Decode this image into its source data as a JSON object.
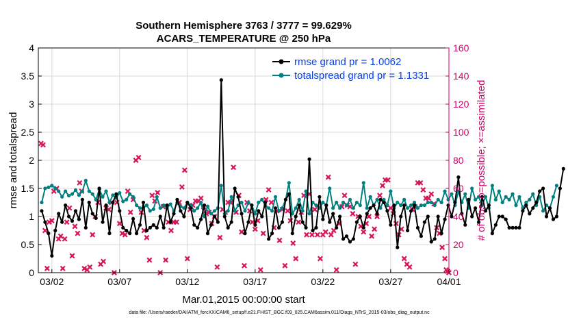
{
  "chart_data": {
    "type": "line",
    "title": "Southern Hemisphere 3763 / 3777 = 99.629%",
    "subtitle": "ACARS_TEMPERATURE @ 250 hPa",
    "xlabel": "Mar.01,2015 00:00:00 start",
    "ylabel": "rmse and totalspread",
    "ylabel_right": "# of obs: o=possible; ×=assimilated",
    "xlim": [
      1,
      31.3
    ],
    "ylim": [
      0,
      4
    ],
    "ylim_right": [
      0,
      160
    ],
    "x_ticks": [
      {
        "x": 2,
        "label": "03/02"
      },
      {
        "x": 7,
        "label": "03/07"
      },
      {
        "x": 12,
        "label": "03/12"
      },
      {
        "x": 17,
        "label": "03/17"
      },
      {
        "x": 22,
        "label": "03/22"
      },
      {
        "x": 27,
        "label": "03/27"
      },
      {
        "x": 32,
        "label": "04/01"
      }
    ],
    "y_ticks": [
      "0",
      "0.5",
      "1",
      "1.5",
      "2",
      "2.5",
      "3",
      "3.5",
      "4"
    ],
    "y_ticks_right": [
      "0",
      "20",
      "40",
      "60",
      "80",
      "100",
      "120",
      "140",
      "160"
    ],
    "legend": {
      "position": "top-right",
      "entries": [
        "rmse grand pr = 1.0062",
        "totalspread grand pr = 1.1331"
      ]
    },
    "colors": {
      "rmse": "#000000",
      "spread": "#008080",
      "obs": "#d6175c",
      "right_axis": "#cc0066"
    },
    "series": [
      {
        "name": "rmse",
        "x_start": 1.25,
        "x_step": 0.25,
        "values": [
          1.1,
          0.9,
          0.7,
          0.3,
          0.75,
          1.05,
          0.9,
          1.2,
          1.0,
          0.92,
          1.1,
          0.95,
          1.3,
          0.8,
          1.25,
          1.05,
          0.97,
          1.5,
          0.9,
          1.2,
          0.7,
          1.25,
          1.4,
          1.1,
          0.8,
          0.75,
          0.7,
          0.96,
          0.7,
          0.85,
          1.25,
          0.75,
          0.8,
          0.85,
          0.8,
          1.0,
          0.8,
          1.2,
          0.9,
          1.05,
          1.3,
          1.1,
          1.0,
          1.25,
          1.15,
          0.85,
          0.8,
          0.95,
          1.2,
          0.7,
          0.85,
          1.0,
          0.9,
          3.43,
          1.0,
          0.8,
          0.9,
          1.5,
          1.35,
          1.05,
          0.7,
          0.9,
          1.2,
          0.85,
          1.1,
          1.0,
          1.25,
          0.6,
          0.7,
          1.15,
          0.8,
          0.9,
          1.3,
          1.4,
          0.7,
          1.0,
          1.2,
          0.9,
          0.8,
          2.02,
          0.75,
          0.8,
          1.35,
          0.95,
          1.2,
          0.9,
          1.05,
          0.8,
          1.0,
          0.6,
          0.65,
          0.55,
          0.6,
          0.9,
          1.0,
          0.8,
          1.05,
          1.15,
          1.2,
          1.05,
          1.3,
          1.25,
          1.1,
          0.85,
          1.2,
          0.45,
          1.0,
          1.2,
          0.75,
          1.1,
          1.2,
          0.8,
          0.65,
          0.9,
          1.0,
          0.55,
          0.6,
          1.0,
          0.7,
          0.95,
          1.2,
          1.0,
          1.25,
          1.7,
          1.05,
          0.85,
          1.3,
          1.0,
          1.15,
          0.9,
          1.35,
          1.1,
          1.2,
          0.7,
          0.85,
          1.0,
          1.0,
          0.95,
          0.8,
          0.8,
          0.8,
          0.8,
          1.1,
          1.2,
          1.05,
          1.15,
          1.25,
          1.45,
          1.5,
          1.0,
          1.15,
          0.95,
          1.0,
          1.5,
          1.85
        ]
      },
      {
        "name": "totalspread",
        "x_start": 1.25,
        "x_step": 0.25,
        "values": [
          1.25,
          1.5,
          1.52,
          1.55,
          1.5,
          1.45,
          1.35,
          1.45,
          1.37,
          1.4,
          1.47,
          1.38,
          1.45,
          1.64,
          1.45,
          1.4,
          1.3,
          1.48,
          1.35,
          1.45,
          1.25,
          1.38,
          1.33,
          1.42,
          1.27,
          1.3,
          1.4,
          1.35,
          1.2,
          1.15,
          1.15,
          1.2,
          1.1,
          1.13,
          1.35,
          1.15,
          1.2,
          1.15,
          1.22,
          1.1,
          1.25,
          1.18,
          1.15,
          1.25,
          1.2,
          1.1,
          1.15,
          1.25,
          1.0,
          1.18,
          1.05,
          1.1,
          1.15,
          1.55,
          1.05,
          1.1,
          1.35,
          1.1,
          1.2,
          1.25,
          1.1,
          1.25,
          1.2,
          1.05,
          1.25,
          1.3,
          1.2,
          1.15,
          1.1,
          1.35,
          1.1,
          1.15,
          1.3,
          1.6,
          1.05,
          1.15,
          1.3,
          1.1,
          1.45,
          1.05,
          1.25,
          1.2,
          1.15,
          1.25,
          1.2,
          1.5,
          1.15,
          1.25,
          1.15,
          1.25,
          1.2,
          1.3,
          1.15,
          1.25,
          1.2,
          1.6,
          1.15,
          1.35,
          1.2,
          1.3,
          1.15,
          1.3,
          1.2,
          1.45,
          1.15,
          1.25,
          1.2,
          1.3,
          1.15,
          1.2,
          1.25,
          1.15,
          1.2,
          1.2,
          1.25,
          1.25,
          1.2,
          1.3,
          1.25,
          1.45,
          1.3,
          1.4,
          1.2,
          1.45,
          1.25,
          1.4,
          1.15,
          1.5,
          1.3,
          1.35,
          1.2,
          1.35,
          1.15,
          1.55,
          1.3,
          1.45,
          1.25,
          1.35,
          1.3,
          1.4,
          1.2,
          1.35,
          1.15,
          1.25,
          1.3,
          1.4,
          1.2,
          1.35,
          1.1,
          1.2,
          1.15,
          1.35,
          1.55
        ]
      },
      {
        "name": "obs_assimilated",
        "points": [
          [
            1.2,
            92
          ],
          [
            1.35,
            91
          ],
          [
            1.5,
            30
          ],
          [
            1.65,
            3
          ],
          [
            1.8,
            36
          ],
          [
            2.0,
            37
          ],
          [
            2.15,
            58
          ],
          [
            2.35,
            60
          ],
          [
            2.5,
            24
          ],
          [
            2.65,
            26
          ],
          [
            2.8,
            3
          ],
          [
            2.95,
            24
          ],
          [
            3.1,
            36
          ],
          [
            3.3,
            46
          ],
          [
            3.5,
            12
          ],
          [
            3.7,
            33
          ],
          [
            3.9,
            28
          ],
          [
            4.05,
            64
          ],
          [
            4.2,
            58
          ],
          [
            4.4,
            3
          ],
          [
            4.6,
            2
          ],
          [
            4.8,
            4
          ],
          [
            5.0,
            27
          ],
          [
            5.2,
            40
          ],
          [
            5.4,
            50
          ],
          [
            5.6,
            6
          ],
          [
            5.8,
            8
          ],
          [
            6.0,
            46
          ],
          [
            6.2,
            45
          ],
          [
            6.4,
            50
          ],
          [
            6.6,
            0
          ],
          [
            6.8,
            50
          ],
          [
            7.0,
            35
          ],
          [
            7.2,
            28
          ],
          [
            7.4,
            27
          ],
          [
            7.6,
            58
          ],
          [
            7.8,
            43
          ],
          [
            8.0,
            52
          ],
          [
            8.2,
            80
          ],
          [
            8.4,
            82
          ],
          [
            8.6,
            43
          ],
          [
            8.8,
            30
          ],
          [
            9.0,
            25
          ],
          [
            9.2,
            9
          ],
          [
            9.4,
            55
          ],
          [
            9.6,
            51
          ],
          [
            9.8,
            57
          ],
          [
            10.0,
            0
          ],
          [
            10.2,
            47
          ],
          [
            10.4,
            9
          ],
          [
            10.6,
            36
          ],
          [
            10.8,
            30
          ],
          [
            11.0,
            36
          ],
          [
            11.2,
            36
          ],
          [
            11.4,
            50
          ],
          [
            11.6,
            61
          ],
          [
            11.8,
            73
          ],
          [
            12.0,
            10
          ],
          [
            12.2,
            45
          ],
          [
            12.4,
            48
          ],
          [
            12.6,
            51
          ],
          [
            12.8,
            51
          ],
          [
            13.0,
            53
          ],
          [
            13.2,
            47
          ],
          [
            13.4,
            42
          ],
          [
            13.6,
            43
          ],
          [
            13.8,
            35
          ],
          [
            14.0,
            40
          ],
          [
            14.2,
            4
          ],
          [
            14.4,
            25
          ],
          [
            14.6,
            45
          ],
          [
            14.8,
            43
          ],
          [
            15.0,
            50
          ],
          [
            15.2,
            50
          ],
          [
            15.4,
            75
          ],
          [
            15.6,
            43
          ],
          [
            15.8,
            55
          ],
          [
            16.0,
            29
          ],
          [
            16.2,
            5
          ],
          [
            16.4,
            50
          ],
          [
            16.6,
            44
          ],
          [
            16.8,
            36
          ],
          [
            17.0,
            31
          ],
          [
            17.2,
            37
          ],
          [
            17.4,
            2
          ],
          [
            17.6,
            28
          ],
          [
            17.8,
            52
          ],
          [
            18.0,
            59
          ],
          [
            18.2,
            50
          ],
          [
            18.4,
            32
          ],
          [
            18.6,
            44
          ],
          [
            18.8,
            23
          ],
          [
            19.0,
            45
          ],
          [
            19.2,
            5
          ],
          [
            19.4,
            44
          ],
          [
            19.6,
            37
          ],
          [
            19.8,
            21
          ],
          [
            20.0,
            10
          ],
          [
            20.2,
            36
          ],
          [
            20.4,
            43
          ],
          [
            20.6,
            55
          ],
          [
            20.8,
            27
          ],
          [
            21.0,
            56
          ],
          [
            21.2,
            27
          ],
          [
            21.4,
            45
          ],
          [
            21.6,
            27
          ],
          [
            21.8,
            10
          ],
          [
            22.0,
            27
          ],
          [
            22.2,
            29
          ],
          [
            22.4,
            68
          ],
          [
            22.6,
            27
          ],
          [
            22.8,
            30
          ],
          [
            23.0,
            2
          ],
          [
            23.2,
            35
          ],
          [
            23.4,
            47
          ],
          [
            23.6,
            55
          ],
          [
            23.8,
            48
          ],
          [
            24.0,
            47
          ],
          [
            24.2,
            42
          ],
          [
            24.4,
            6
          ],
          [
            24.6,
            40
          ],
          [
            24.8,
            33
          ],
          [
            25.0,
            29
          ],
          [
            25.2,
            35
          ],
          [
            25.4,
            40
          ],
          [
            25.6,
            26
          ],
          [
            25.8,
            31
          ],
          [
            26.0,
            40
          ],
          [
            26.2,
            55
          ],
          [
            26.4,
            62
          ],
          [
            26.6,
            66
          ],
          [
            26.8,
            66
          ],
          [
            27.0,
            46
          ],
          [
            27.2,
            42
          ],
          [
            27.4,
            35
          ],
          [
            27.6,
            27
          ],
          [
            27.8,
            31
          ],
          [
            28.0,
            10
          ],
          [
            28.2,
            6
          ],
          [
            28.4,
            4
          ],
          [
            28.6,
            45
          ],
          [
            28.8,
            47
          ],
          [
            29.0,
            64
          ],
          [
            29.2,
            64
          ],
          [
            29.4,
            59
          ],
          [
            29.6,
            53
          ],
          [
            29.8,
            53
          ],
          [
            30.0,
            56
          ],
          [
            30.2,
            49
          ],
          [
            30.4,
            32
          ],
          [
            30.6,
            28
          ],
          [
            30.8,
            18
          ],
          [
            31.0,
            10
          ],
          [
            31.1,
            2
          ],
          [
            31.2,
            1
          ],
          [
            31.3,
            0
          ]
        ]
      }
    ]
  },
  "footnote": "data file: /Users/raeder/DAI/ATM_forcXX/CAM6_setup/f.e21.FHIST_BGC.f09_025.CAM6assim.011/Diags_NTrS_2015-03/obs_diag_output.nc"
}
